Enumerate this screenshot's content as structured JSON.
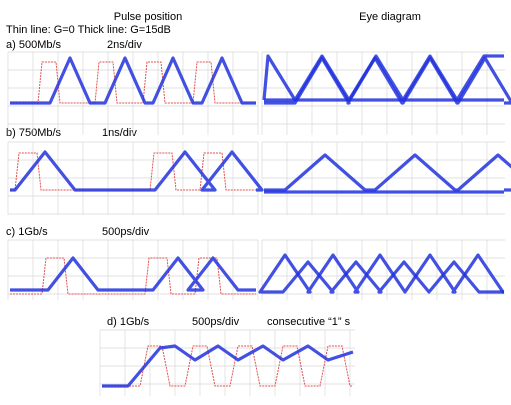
{
  "header": {
    "left_title": "Pulse position",
    "right_title": "Eye diagram",
    "legend": "Thin line: G=0  Thick line: G=15dB"
  },
  "panels": [
    {
      "label": "a) 500Mb/s",
      "scale": "2ns/div"
    },
    {
      "label": "b) 750Mb/s",
      "scale": "1ns/div"
    },
    {
      "label": "c) 1Gb/s",
      "scale": "500ps/div"
    },
    {
      "label": "d) 1Gb/s",
      "scale": "500ps/div",
      "description": "consecutive “1” s"
    }
  ]
}
